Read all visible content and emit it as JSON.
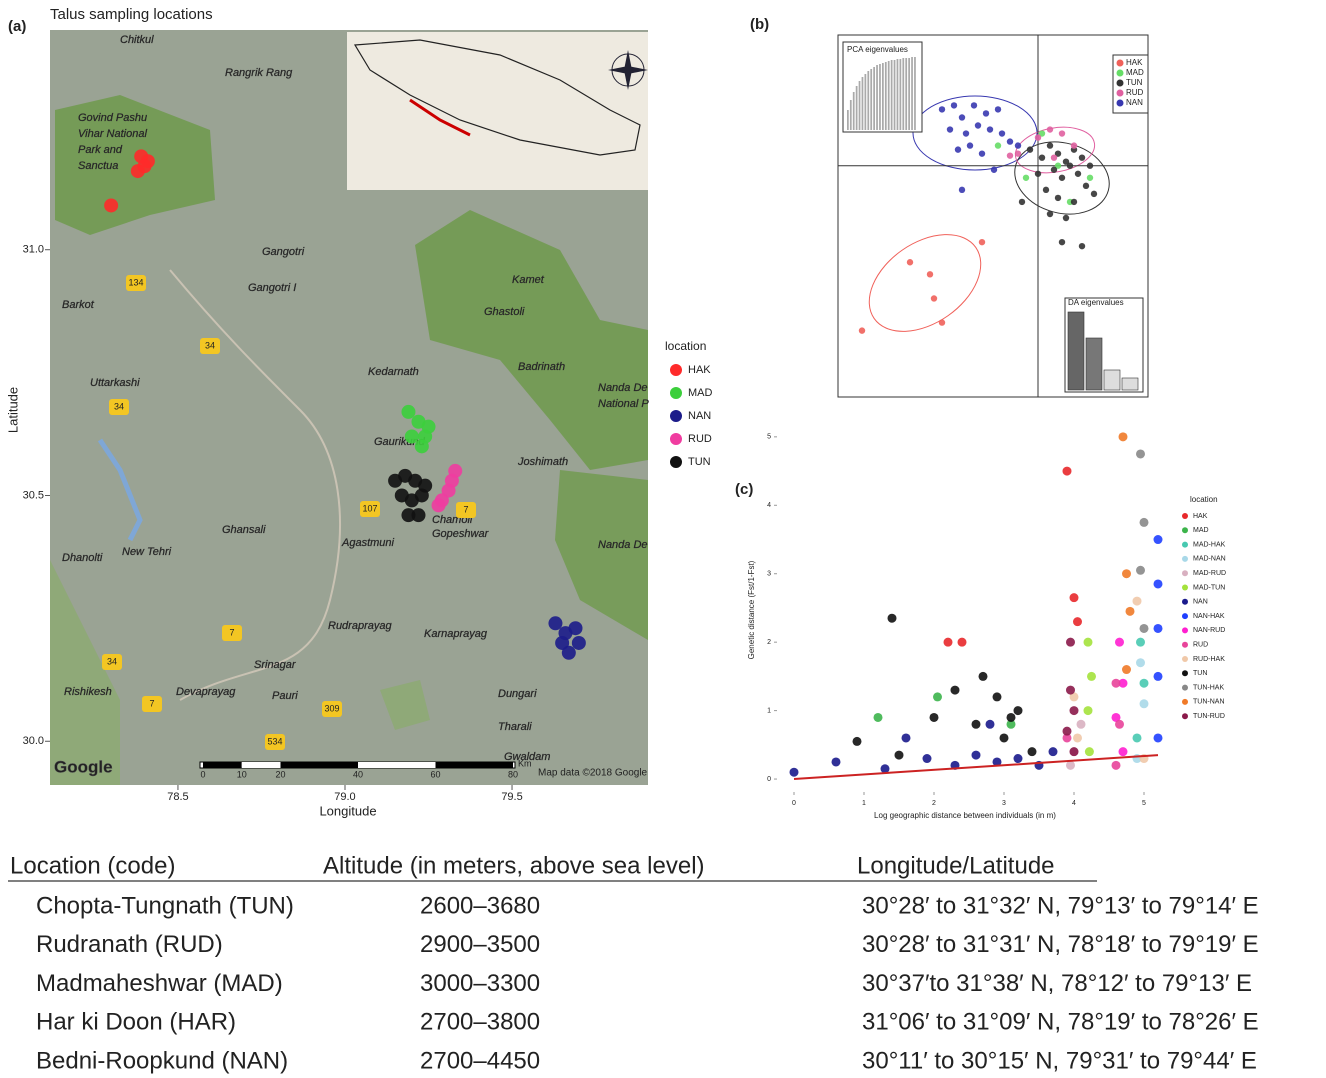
{
  "chart_data": [
    {
      "type": "map",
      "label": "(a)",
      "title": "Talus sampling locations",
      "xlabel": "Longitude",
      "ylabel": "Latitude",
      "xlim": [
        78.117,
        79.907
      ],
      "ylim": [
        29.911,
        31.447
      ],
      "xticks": [
        78.5,
        {
          "value": 79,
          "label": "79.0"
        },
        79.5
      ],
      "yticks": [
        {
          "value": 30,
          "label": "30.0"
        },
        30.5,
        {
          "value": 31,
          "label": "31.0"
        }
      ],
      "legend_title": "location",
      "series": [
        {
          "name": "HAK",
          "color": "#ff2a2a",
          "x": [
            78.39,
            78.41,
            78.38,
            78.4,
            78.3
          ],
          "y": [
            31.19,
            31.18,
            31.16,
            31.17,
            31.09
          ]
        },
        {
          "name": "MAD",
          "color": "#3ccf3c",
          "x": [
            79.19,
            79.22,
            79.24,
            79.2,
            79.23,
            79.25
          ],
          "y": [
            30.67,
            30.65,
            30.62,
            30.62,
            30.6,
            30.64
          ]
        },
        {
          "name": "NAN",
          "color": "#1c1c8a",
          "x": [
            79.63,
            79.66,
            79.69,
            79.65,
            79.7,
            79.67
          ],
          "y": [
            30.24,
            30.22,
            30.23,
            30.2,
            30.2,
            30.18
          ]
        },
        {
          "name": "RUD",
          "color": "#f03ca0",
          "x": [
            79.33,
            79.32,
            79.31,
            79.29,
            79.28
          ],
          "y": [
            30.55,
            30.53,
            30.51,
            30.49,
            30.48
          ]
        },
        {
          "name": "TUN",
          "color": "#111111",
          "x": [
            79.15,
            79.18,
            79.21,
            79.24,
            79.17,
            79.2,
            79.23,
            79.19,
            79.22
          ],
          "y": [
            30.53,
            30.54,
            30.53,
            30.52,
            30.5,
            30.49,
            30.5,
            30.46,
            30.46
          ]
        }
      ],
      "map_labels": [
        "Chitkul",
        "Rangrik Rang",
        "Govind Pashu",
        "Vihar National",
        "Park and",
        "Sanctua",
        "Gangotri",
        "Gangotri I",
        "Kamet",
        "Ghastoli",
        "Barkot",
        "Uttarkashi",
        "Kedarnath",
        "Badrinath",
        "Nanda De",
        "National P",
        "Gaurikund",
        "Joshimath",
        "Ghansali",
        "Chamoli",
        "Gopeshwar",
        "Dhanolti",
        "New Tehri",
        "Agastmuni",
        "Rudraprayag",
        "Karnaprayag",
        "Srinagar",
        "Devaprayag",
        "Pauri",
        "Dungari",
        "Rishikesh",
        "Tharali",
        "Gwaldam",
        "Nanda De"
      ],
      "roads": [
        "134",
        "34",
        "34",
        "107",
        "7",
        "7",
        "34",
        "7",
        "309",
        "534"
      ],
      "scale_bar": {
        "values": [
          0,
          10,
          20,
          40,
          60,
          80
        ],
        "unit": "Km"
      },
      "attribution": "Map data ©2018 Google",
      "logo": "Google"
    },
    {
      "type": "scatter",
      "label": "(b)",
      "xlim": [
        -5,
        2.75
      ],
      "ylim": [
        -5.75,
        3.25
      ],
      "series": [
        {
          "name": "HAK",
          "color": "#f0615a",
          "x": [
            -1.4,
            -3.2,
            -2.7,
            -2.6,
            -4.4,
            -2.4
          ],
          "y": [
            -1.9,
            -2.4,
            -2.7,
            -3.3,
            -4.1,
            -3.9
          ]
        },
        {
          "name": "MAD",
          "color": "#66dd66",
          "x": [
            -1.0,
            0.1,
            0.5,
            0.8,
            1.3,
            -0.3
          ],
          "y": [
            0.5,
            0.8,
            0.0,
            -0.9,
            -0.3,
            -0.3
          ]
        },
        {
          "name": "TUN",
          "color": "#333333",
          "x": [
            -0.2,
            0.1,
            0.3,
            0.5,
            0.7,
            0.9,
            1.1,
            1.3,
            0.0,
            0.4,
            0.6,
            0.8,
            1.0,
            1.2,
            0.2,
            0.5,
            0.9,
            -0.4,
            0.3,
            0.7,
            1.4,
            0.6,
            1.1
          ],
          "y": [
            0.4,
            0.2,
            0.5,
            0.3,
            0.1,
            0.4,
            0.2,
            0.0,
            -0.2,
            -0.1,
            -0.3,
            0.0,
            -0.2,
            -0.5,
            -0.6,
            -0.8,
            -0.9,
            -0.9,
            -1.2,
            -1.3,
            -0.7,
            -1.9,
            -2.0
          ]
        },
        {
          "name": "RUD",
          "color": "#e060a0",
          "x": [
            0.0,
            0.3,
            0.6,
            -0.5,
            0.4,
            0.9,
            -0.7
          ],
          "y": [
            0.7,
            0.9,
            0.8,
            0.3,
            0.2,
            0.5,
            0.25
          ]
        },
        {
          "name": "NAN",
          "color": "#3838b0",
          "x": [
            -2.4,
            -2.1,
            -1.9,
            -1.6,
            -1.3,
            -1.0,
            -2.2,
            -1.8,
            -1.5,
            -1.2,
            -0.9,
            -2.0,
            -1.7,
            -1.4,
            -0.7,
            -1.9,
            -1.1,
            -0.5
          ],
          "y": [
            1.4,
            1.5,
            1.2,
            1.5,
            1.3,
            1.4,
            0.9,
            0.8,
            1.0,
            0.9,
            0.8,
            0.4,
            0.5,
            0.3,
            0.6,
            -0.6,
            -0.1,
            0.5
          ]
        }
      ],
      "pca_eigenvalues": {
        "title": "PCA eigenvalues",
        "values": [
          20,
          30,
          38,
          44,
          49,
          53,
          56,
          59,
          61,
          63,
          65,
          66,
          67,
          68,
          69,
          70,
          70,
          71,
          71,
          72,
          72,
          72,
          73,
          73
        ]
      },
      "da_eigenvalues": {
        "title": "DA eigenvalues",
        "values": [
          78,
          52,
          20,
          12
        ]
      }
    },
    {
      "type": "scatter",
      "label": "(c)",
      "xlabel": "Log geographic distance between individuals (in m)",
      "ylabel": "Genetic distance (Fst/1-Fst)",
      "xlim": [
        -0.2,
        5.3
      ],
      "ylim": [
        -0.16,
        5.1
      ],
      "xticks": [
        0,
        1,
        2,
        3,
        4,
        5
      ],
      "yticks": [
        0,
        1,
        2,
        3,
        4,
        5
      ],
      "legend_title": "location",
      "series": [
        {
          "name": "HAK",
          "color": "#e8282b",
          "x": [
            3.9,
            4.0,
            2.2,
            2.4,
            4.05
          ],
          "y": [
            4.5,
            2.65,
            2.0,
            2.0,
            2.3
          ]
        },
        {
          "name": "MAD",
          "color": "#3cb44b",
          "x": [
            2.05,
            1.2,
            3.1
          ],
          "y": [
            1.2,
            0.9,
            0.8
          ]
        },
        {
          "name": "MAD-HAK",
          "color": "#48c9b0",
          "x": [
            4.95,
            5.0,
            4.9
          ],
          "y": [
            2.0,
            1.4,
            0.6
          ]
        },
        {
          "name": "MAD-NAN",
          "color": "#a8d8e8",
          "x": [
            4.95,
            5.0,
            4.9
          ],
          "y": [
            1.7,
            1.1,
            0.3
          ]
        },
        {
          "name": "MAD-RUD",
          "color": "#d8b0c0",
          "x": [
            4.0,
            4.1,
            3.95
          ],
          "y": [
            0.4,
            0.8,
            0.2
          ]
        },
        {
          "name": "MAD-TUN",
          "color": "#a4e23c",
          "x": [
            4.2,
            4.25,
            4.2,
            4.22
          ],
          "y": [
            2.0,
            1.5,
            1.0,
            0.4
          ]
        },
        {
          "name": "NAN",
          "color": "#1a1a8c",
          "x": [
            0,
            0.6,
            1.3,
            1.9,
            2.3,
            2.6,
            2.9,
            3.2,
            3.5,
            3.7,
            1.6,
            2.8
          ],
          "y": [
            0.1,
            0.25,
            0.15,
            0.3,
            0.2,
            0.35,
            0.25,
            0.3,
            0.2,
            0.4,
            0.6,
            0.8
          ]
        },
        {
          "name": "NAN-HAK",
          "color": "#1f3fff",
          "x": [
            5.2,
            5.2,
            5.2,
            5.2,
            5.2
          ],
          "y": [
            3.5,
            2.85,
            2.2,
            1.5,
            0.6
          ]
        },
        {
          "name": "NAN-RUD",
          "color": "#ff1fd0",
          "x": [
            4.65,
            4.7,
            4.6,
            4.7
          ],
          "y": [
            2.0,
            1.4,
            0.9,
            0.4
          ]
        },
        {
          "name": "RUD",
          "color": "#e8449a",
          "x": [
            4.6,
            4.65,
            3.9,
            4.6
          ],
          "y": [
            1.4,
            0.8,
            0.6,
            0.2
          ]
        },
        {
          "name": "RUD-HAK",
          "color": "#f0c8a8",
          "x": [
            4.0,
            4.05,
            4.9,
            5.0
          ],
          "y": [
            1.2,
            0.6,
            2.6,
            0.3
          ]
        },
        {
          "name": "TUN",
          "color": "#111111",
          "x": [
            0.9,
            1.5,
            2.0,
            2.3,
            2.6,
            2.9,
            3.0,
            3.2,
            3.4,
            1.4,
            2.7,
            3.1
          ],
          "y": [
            0.55,
            0.35,
            0.9,
            1.3,
            0.8,
            1.2,
            0.6,
            1.0,
            0.4,
            2.35,
            1.5,
            0.9
          ]
        },
        {
          "name": "TUN-HAK",
          "color": "#888888",
          "x": [
            4.95,
            5.0,
            4.95,
            5.0
          ],
          "y": [
            4.75,
            3.75,
            3.05,
            2.2
          ]
        },
        {
          "name": "TUN-NAN",
          "color": "#f07a28",
          "x": [
            4.7,
            4.75,
            4.8,
            4.75
          ],
          "y": [
            5.0,
            3.0,
            2.45,
            1.6
          ]
        },
        {
          "name": "TUN-RUD",
          "color": "#8b1a4a",
          "x": [
            3.95,
            4.0,
            3.9,
            4.0,
            3.95
          ],
          "y": [
            1.3,
            1.0,
            0.7,
            0.4,
            2.0
          ]
        }
      ],
      "fit": {
        "color": "#cc2222",
        "x": [
          0,
          5.2
        ],
        "y": [
          0,
          0.35
        ]
      }
    }
  ],
  "table": {
    "columns": [
      "Location (code)",
      "Altitude (in meters, above sea level)",
      "Longitude/Latitude"
    ],
    "rows": [
      [
        "Chopta-Tungnath (TUN)",
        "2600–3680",
        "30°28′ to 31°32′ N, 79°13′ to 79°14′ E"
      ],
      [
        "Rudranath (RUD)",
        "2900–3500",
        "30°28′ to 31°31′ N, 78°18′ to 79°19′ E"
      ],
      [
        "Madmaheshwar (MAD)",
        "3000–3300",
        "30°37′to 31°38′ N, 78°12′ to 79°13′ E"
      ],
      [
        "Har ki Doon (HAR)",
        "2700–3800",
        "31°06′ to 31°09′ N, 78°19′ to 78°26′ E"
      ],
      [
        "Bedni-Roopkund (NAN)",
        "2700–4450",
        "30°11′ to 30°15′ N, 79°31′ to 79°44′ E"
      ]
    ]
  }
}
